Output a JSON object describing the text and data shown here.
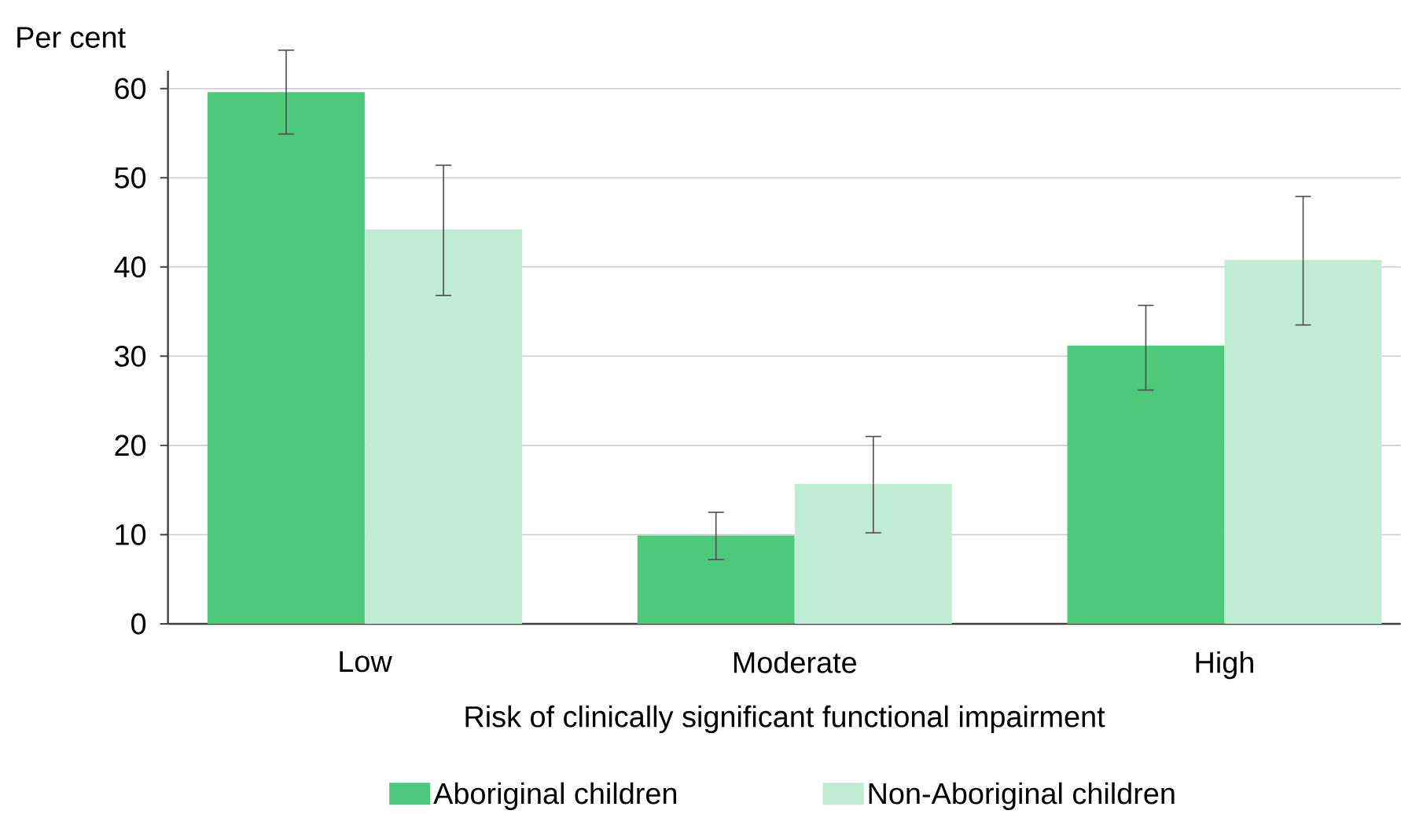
{
  "chart_data": {
    "type": "bar",
    "ylabel": "Per cent",
    "xlabel": "Risk of clinically significant functional impairment",
    "categories": [
      "Low",
      "Moderate",
      "High"
    ],
    "series": [
      {
        "name": "Aboriginal children",
        "color": "#4dc97b",
        "values": [
          59.6,
          9.9,
          31.2
        ],
        "errors": [
          [
            54.9,
            64.3
          ],
          [
            7.2,
            12.5
          ],
          [
            26.2,
            35.7
          ]
        ]
      },
      {
        "name": "Non-Aboriginal children",
        "color": "#c0ebd4",
        "values": [
          44.2,
          15.7,
          40.8
        ],
        "errors": [
          [
            36.8,
            51.4
          ],
          [
            10.2,
            21.0
          ],
          [
            33.5,
            47.9
          ]
        ]
      }
    ],
    "ylim": [
      0,
      62
    ],
    "yticks": [
      0,
      10,
      20,
      30,
      40,
      50,
      60
    ],
    "grid": "y",
    "legend": "bottom"
  }
}
